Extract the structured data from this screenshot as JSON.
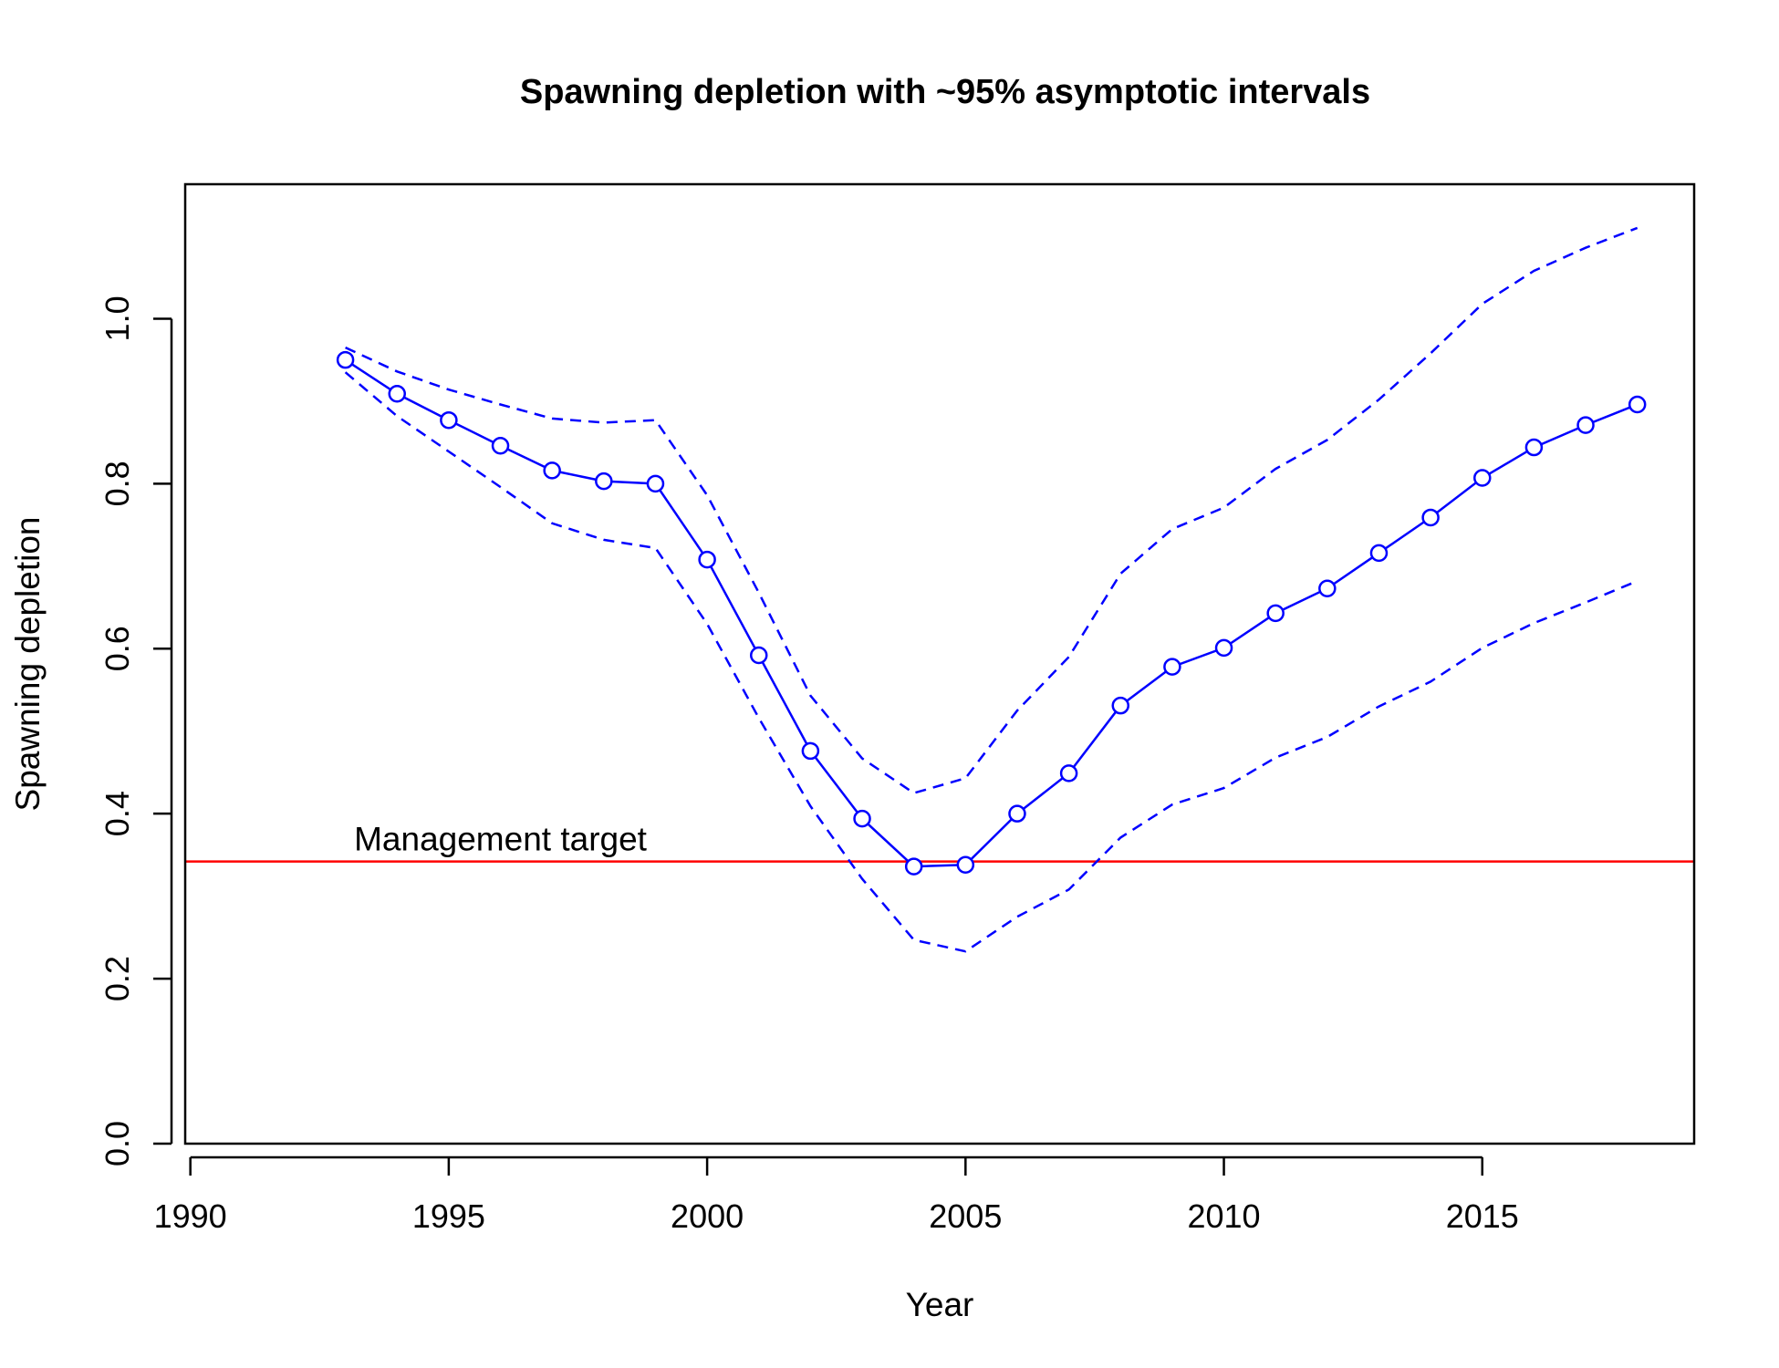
{
  "chart_data": {
    "type": "line",
    "title": "Spawning depletion with ~95% asymptotic intervals",
    "xlabel": "Year",
    "ylabel": "Spawning depletion",
    "xlim": [
      1989.9,
      2019.1
    ],
    "ylim": [
      0,
      1.163
    ],
    "xticks": [
      1990,
      1995,
      2000,
      2005,
      2010,
      2015
    ],
    "xtick_labels": [
      "1990",
      "1995",
      "2000",
      "2005",
      "2010",
      "2015"
    ],
    "yticks": [
      0,
      0.2,
      0.4,
      0.6,
      0.8,
      1.0
    ],
    "ytick_labels": [
      "0.0",
      "0.2",
      "0.4",
      "0.6",
      "0.8",
      "1.0"
    ],
    "grid": false,
    "colors": {
      "series": "#0000ff",
      "target": "#ff0000",
      "axis": "#000000"
    },
    "x": [
      1993,
      1994,
      1995,
      1996,
      1997,
      1998,
      1999,
      2000,
      2001,
      2002,
      2003,
      2004,
      2005,
      2006,
      2007,
      2008,
      2009,
      2010,
      2011,
      2012,
      2013,
      2014,
      2015,
      2016,
      2017,
      2018
    ],
    "series": [
      {
        "style": "line-points",
        "values": [
          0.95,
          0.909,
          0.877,
          0.846,
          0.816,
          0.803,
          0.8,
          0.708,
          0.592,
          0.476,
          0.394,
          0.336,
          0.338,
          0.4,
          0.449,
          0.531,
          0.578,
          0.601,
          0.643,
          0.673,
          0.716,
          0.759,
          0.807,
          0.844,
          0.871,
          0.896
        ]
      },
      {
        "style": "dashed",
        "values": [
          0.965,
          0.936,
          0.914,
          0.896,
          0.879,
          0.874,
          0.877,
          0.786,
          0.668,
          0.543,
          0.467,
          0.425,
          0.443,
          0.525,
          0.59,
          0.691,
          0.745,
          0.771,
          0.818,
          0.853,
          0.902,
          0.958,
          1.018,
          1.058,
          1.086,
          1.11
        ]
      },
      {
        "style": "dashed",
        "values": [
          0.935,
          0.882,
          0.839,
          0.796,
          0.752,
          0.732,
          0.722,
          0.63,
          0.516,
          0.409,
          0.321,
          0.247,
          0.233,
          0.275,
          0.308,
          0.371,
          0.411,
          0.431,
          0.468,
          0.493,
          0.53,
          0.56,
          0.601,
          0.631,
          0.656,
          0.682
        ]
      }
    ],
    "reference_lines": [
      {
        "y": 0.342,
        "label": "Management target",
        "label_x": 1996
      }
    ]
  }
}
